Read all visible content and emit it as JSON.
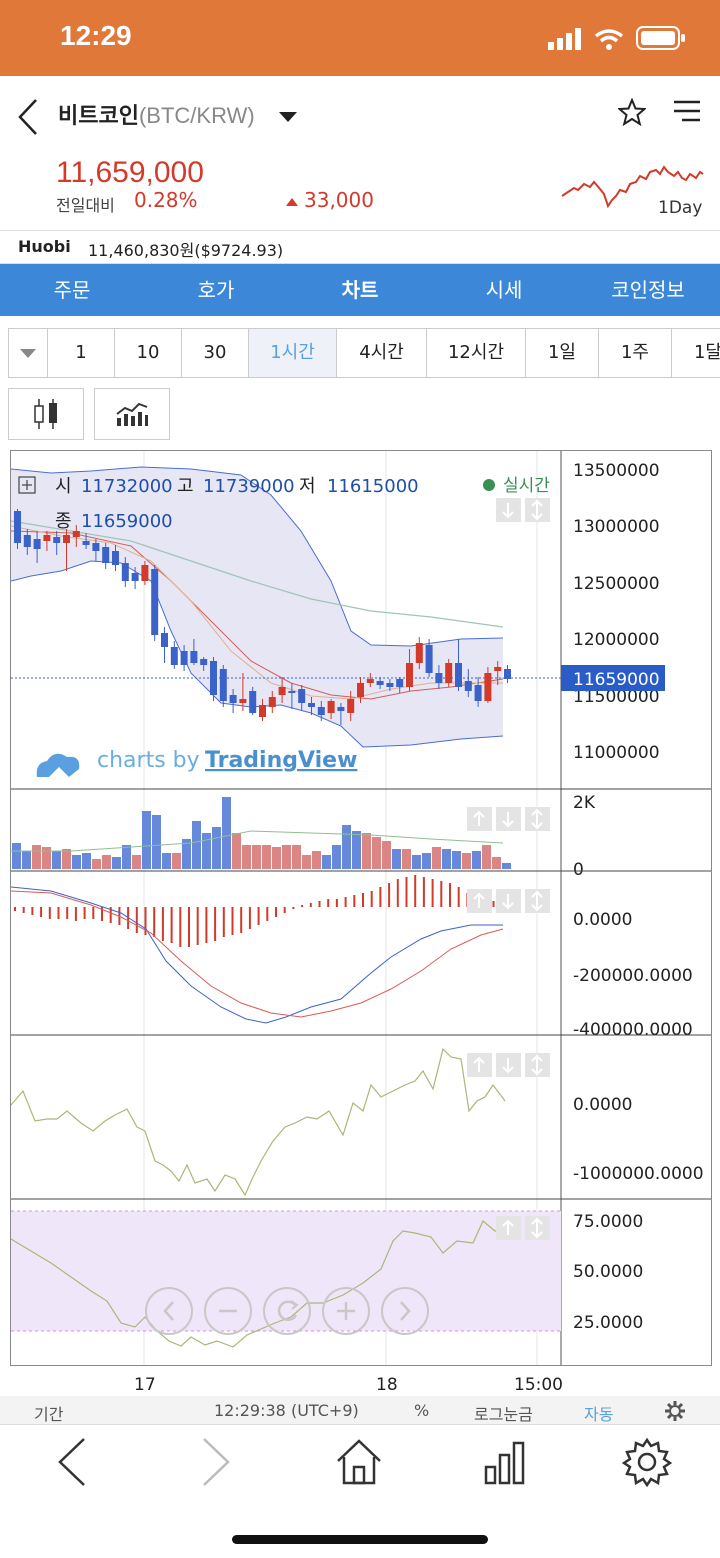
{
  "status": {
    "time": "12:29"
  },
  "header": {
    "title": "비트코인",
    "pair": "(BTC/KRW)"
  },
  "price": {
    "current": "11,659,000",
    "prev_label": "전일대비",
    "percent": "0.28%",
    "change": "33,000",
    "mini_chart_label": "1Day"
  },
  "exchange": {
    "name": "Huobi",
    "value": "11,460,830원($9724.93)"
  },
  "tabs": [
    {
      "label": "주문"
    },
    {
      "label": "호가"
    },
    {
      "label": "차트"
    },
    {
      "label": "시세"
    },
    {
      "label": "코인정보"
    }
  ],
  "periods": [
    {
      "label": "1"
    },
    {
      "label": "10"
    },
    {
      "label": "30"
    },
    {
      "label": "1시간"
    },
    {
      "label": "4시간"
    },
    {
      "label": "12시간"
    },
    {
      "label": "1일"
    },
    {
      "label": "1주"
    },
    {
      "label": "1달"
    }
  ],
  "chart": {
    "ohlc": {
      "open_label": "시",
      "open": "11732000",
      "high_label": "고",
      "high": "11739000",
      "low_label": "저",
      "low": "11615000",
      "close_label": "종",
      "close": "11659000",
      "realtime": "실시간"
    },
    "watermark_prefix": "charts by",
    "watermark_brand": "TradingView",
    "price_axis": [
      "13500000",
      "13000000",
      "12500000",
      "12000000",
      "11500000",
      "11000000"
    ],
    "current_price_tag": "11659000",
    "volume_axis": [
      "2K",
      "0"
    ],
    "macd_axis": [
      "0.0000",
      "-200000.0000",
      "-400000.0000"
    ],
    "ind2_axis": [
      "0.0000",
      "-1000000.0000"
    ],
    "rsi_axis": [
      "75.0000",
      "50.0000",
      "25.0000"
    ],
    "time_axis": [
      "17",
      "18",
      "15:00"
    ]
  },
  "bottom": {
    "period": "기간",
    "clock": "12:29:38 (UTC+9)",
    "percent": "%",
    "log": "로그눈금",
    "auto": "자동"
  },
  "colors": {
    "status_bar": "#e0783a",
    "tab_bar": "#3c87d8",
    "up": "#d23a2a",
    "down": "#3b62c8"
  }
}
